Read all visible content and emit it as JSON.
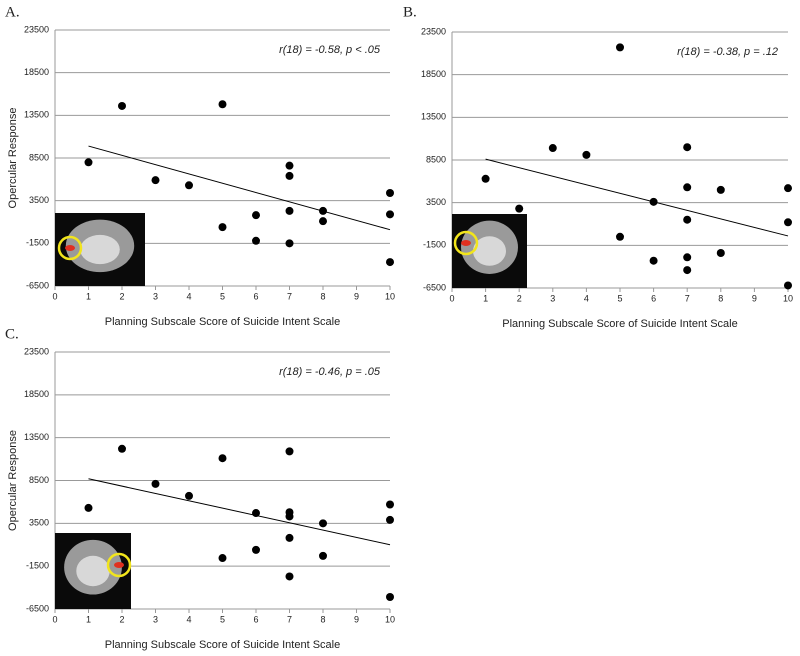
{
  "chart_data": [
    {
      "type": "scatter",
      "panel_label": "A.",
      "annotation": "r(18) = -0.58, p < .05",
      "y_label": "Opercular Response",
      "x_label": "Planning Subscale Score of Suicide Intent Scale",
      "x": [
        1,
        2,
        3,
        4,
        5,
        5,
        6,
        6,
        7,
        7,
        7,
        7,
        8,
        8,
        10,
        10,
        10
      ],
      "values": [
        8000,
        14600,
        5900,
        5300,
        14800,
        400,
        1800,
        -1200,
        7600,
        6400,
        2300,
        -1500,
        2300,
        1100,
        4400,
        1900,
        -3700
      ],
      "color": "#000000",
      "trend_line": {
        "x": [
          1,
          10
        ],
        "y": [
          9900,
          100
        ]
      },
      "xlim": [
        0,
        10
      ],
      "xticks": [
        0,
        1,
        2,
        3,
        4,
        5,
        6,
        7,
        8,
        9,
        10
      ],
      "ylim": [
        -6500,
        23500
      ],
      "yticks": [
        -6500,
        -1500,
        3500,
        8500,
        13500,
        18500,
        23500
      ],
      "grid": true
    },
    {
      "type": "scatter",
      "panel_label": "B.",
      "annotation": "r(18) = -0.38, p = .12",
      "x_label": "Planning Subscale Score of Suicide Intent Scale",
      "x": [
        1,
        2,
        3,
        4,
        5,
        5,
        6,
        6,
        7,
        7,
        7,
        7,
        7,
        8,
        8,
        10,
        10,
        10
      ],
      "values": [
        6300,
        2800,
        9900,
        9100,
        21700,
        -500,
        3600,
        -3300,
        10000,
        5300,
        1500,
        -2900,
        -4400,
        5000,
        -2400,
        5200,
        1200,
        -6200
      ],
      "color": "#000000",
      "trend_line": {
        "x": [
          1,
          10
        ],
        "y": [
          8600,
          -400
        ]
      },
      "xlim": [
        0,
        10
      ],
      "xticks": [
        0,
        1,
        2,
        3,
        4,
        5,
        6,
        7,
        8,
        9,
        10
      ],
      "ylim": [
        -6500,
        23500
      ],
      "yticks": [
        -6500,
        -1500,
        3500,
        8500,
        13500,
        18500,
        23500
      ],
      "grid": true
    },
    {
      "type": "scatter",
      "panel_label": "C.",
      "annotation": "r(18) = -0.46, p = .05",
      "y_label": "Opercular Response",
      "x_label": "Planning Subscale Score of Suicide Intent Scale",
      "x": [
        1,
        2,
        3,
        4,
        5,
        5,
        6,
        6,
        7,
        7,
        7,
        7,
        7,
        8,
        8,
        10,
        10,
        10
      ],
      "values": [
        5300,
        12200,
        8100,
        6700,
        11100,
        -550,
        4700,
        400,
        11900,
        4800,
        4300,
        1800,
        -2700,
        3500,
        -300,
        5700,
        3900,
        -5100
      ],
      "color": "#000000",
      "trend_line": {
        "x": [
          1,
          10
        ],
        "y": [
          8700,
          1000
        ]
      },
      "xlim": [
        0,
        10
      ],
      "xticks": [
        0,
        1,
        2,
        3,
        4,
        5,
        6,
        7,
        8,
        9,
        10
      ],
      "ylim": [
        -6500,
        23500
      ],
      "yticks": [
        -6500,
        -1500,
        3500,
        8500,
        13500,
        18500,
        23500
      ],
      "grid": true
    }
  ]
}
